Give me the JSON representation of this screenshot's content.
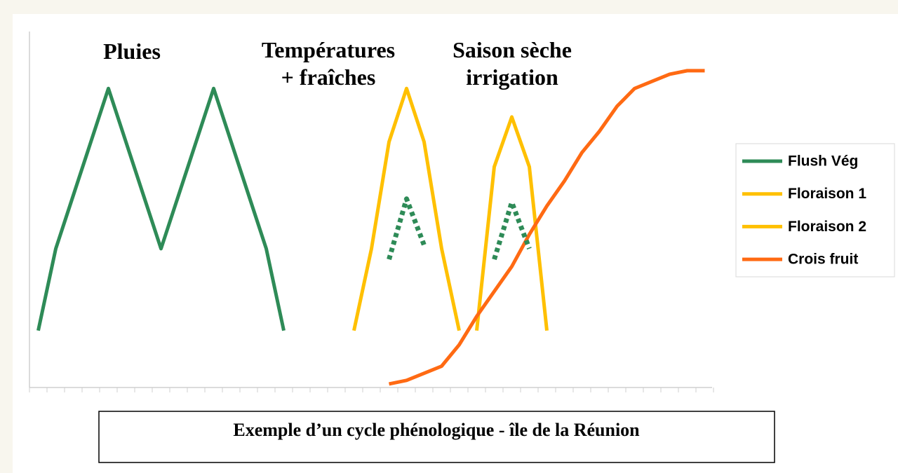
{
  "chart_data": {
    "type": "line",
    "title": "Exemple d’un cycle phénologique  - île de la Réunion",
    "annotations": [
      "Pluies",
      "Températures",
      "+ fraîches",
      "Saison sèche",
      "irrigation"
    ],
    "categories": [
      null,
      null,
      null,
      null,
      null,
      null,
      null,
      null,
      null,
      null,
      null,
      null,
      null,
      null,
      null,
      null,
      null,
      null,
      null,
      null,
      null,
      null,
      null,
      null,
      null,
      null,
      null,
      null,
      null,
      null,
      null,
      null,
      null,
      null,
      null,
      null,
      null,
      null,
      null
    ],
    "ylim": [
      0,
      100
    ],
    "legend": "right",
    "series": [
      {
        "name": "Flush Vég",
        "color": "#2e8b57",
        "values": [
          16,
          39,
          54,
          69,
          84,
          69,
          54,
          39,
          54,
          69,
          84,
          69,
          54,
          39,
          16,
          null,
          null,
          null,
          null,
          null,
          null,
          null,
          null,
          null,
          null,
          null,
          null,
          null,
          null,
          null,
          null,
          null,
          null,
          null,
          null,
          null,
          null,
          null,
          null
        ]
      },
      {
        "name": "Floraison 1",
        "color": "#ffc000",
        "values": [
          null,
          null,
          null,
          null,
          null,
          null,
          null,
          null,
          null,
          null,
          null,
          null,
          null,
          null,
          null,
          null,
          null,
          null,
          16,
          39,
          69,
          84,
          69,
          39,
          16,
          null,
          null,
          null,
          null,
          null,
          null,
          null,
          null,
          null,
          null,
          null,
          null,
          null,
          null
        ]
      },
      {
        "name": "Floraison 2",
        "color": "#ffc000",
        "values": [
          null,
          null,
          null,
          null,
          null,
          null,
          null,
          null,
          null,
          null,
          null,
          null,
          null,
          null,
          null,
          null,
          null,
          null,
          null,
          null,
          null,
          null,
          null,
          null,
          null,
          16,
          62,
          76,
          62,
          16,
          null,
          null,
          null,
          null,
          null,
          null,
          null,
          null,
          null
        ]
      },
      {
        "name": "Crois fruit",
        "color": "#ff6a13",
        "values": [
          null,
          null,
          null,
          null,
          null,
          null,
          null,
          null,
          null,
          null,
          null,
          null,
          null,
          null,
          null,
          null,
          null,
          null,
          null,
          null,
          1,
          2,
          4,
          6,
          12,
          20,
          27,
          34,
          43,
          51,
          58,
          66,
          72,
          79,
          84,
          86,
          88,
          89,
          89
        ]
      },
      {
        "color": "#2e8b57",
        "dashed": true,
        "values": [
          null,
          null,
          null,
          null,
          null,
          null,
          null,
          null,
          null,
          null,
          null,
          null,
          null,
          null,
          null,
          null,
          null,
          null,
          null,
          null,
          36,
          53,
          40,
          null,
          null,
          null,
          36,
          52,
          39,
          null,
          null,
          null,
          null,
          null,
          null,
          null,
          null,
          null,
          null
        ]
      }
    ]
  }
}
